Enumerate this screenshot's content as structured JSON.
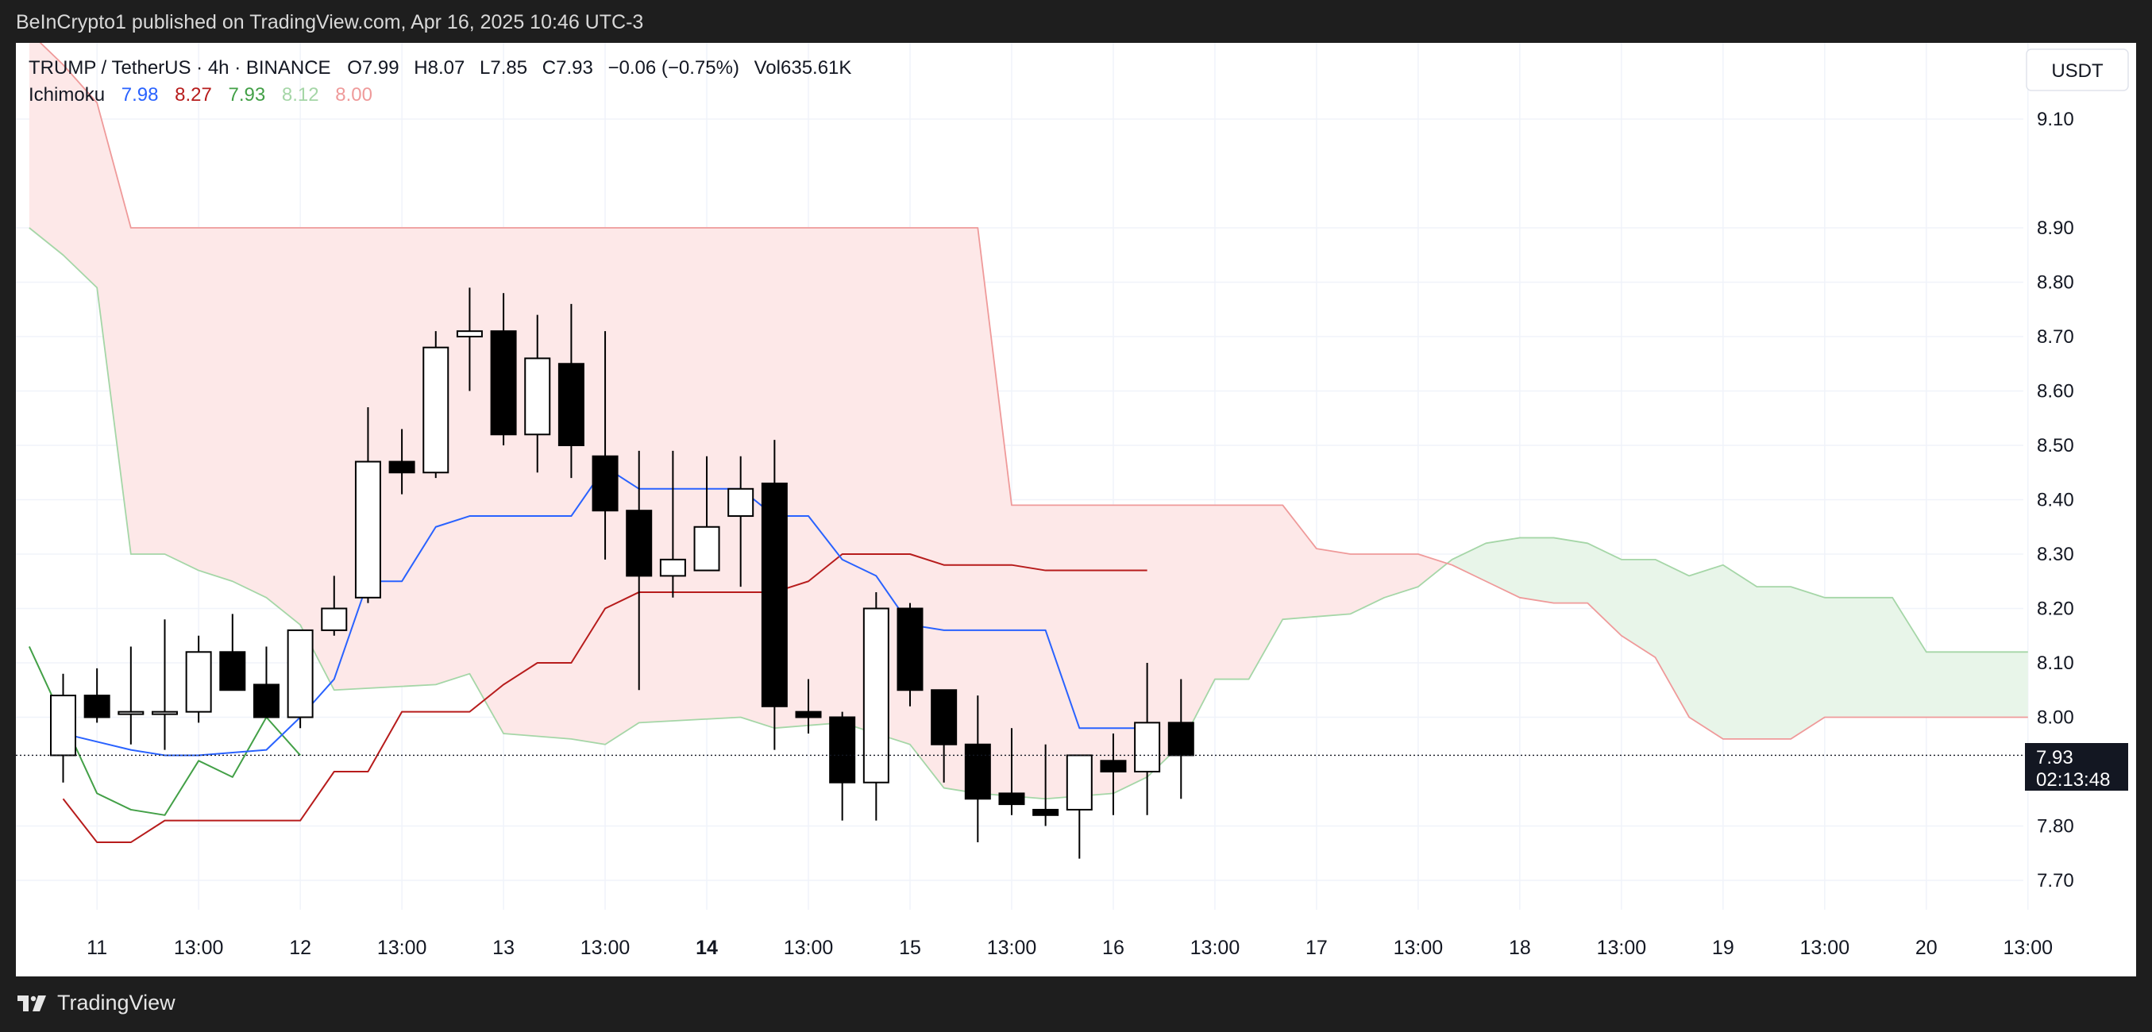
{
  "header": {
    "publisher": "BeInCrypto1 published on TradingView.com, Apr 16, 2025 10:46 UTC-3"
  },
  "legend": {
    "symbol": "TRUMP / TetherUS · 4h · BINANCE",
    "open_label": "O",
    "open": "7.99",
    "high_label": "H",
    "high": "8.07",
    "low_label": "L",
    "low": "7.85",
    "close_label": "C",
    "close": "7.93",
    "change": "−0.06 (−0.75%)",
    "vol_label": "Vol",
    "vol": "635.61K",
    "indicator": "Ichimoku",
    "ind_values": [
      "7.98",
      "8.27",
      "7.93",
      "8.12",
      "8.00"
    ]
  },
  "currency_button": "USDT",
  "price_tag": {
    "price": "7.93",
    "countdown": "02:13:48"
  },
  "footer": {
    "brand": "TradingView"
  },
  "colors": {
    "conversion": "#2962ff",
    "base": "#b71c1c",
    "lagging": "#43a047",
    "span_a": "#a5d6a7",
    "span_b": "#ef9a9a",
    "cloud_bear": "#fde8e8",
    "cloud_bull": "#e8f5e9",
    "legend_values": [
      "#2962ff",
      "#b71c1c",
      "#43a047",
      "#a5d6a7",
      "#ef9a9a"
    ]
  },
  "chart_data": {
    "type": "candlestick",
    "timeframe": "4h",
    "y_ticks": [
      7.7,
      7.8,
      8.0,
      8.1,
      8.2,
      8.3,
      8.4,
      8.5,
      8.6,
      8.7,
      8.8,
      8.9,
      9.1
    ],
    "y_tick_labels": [
      "7.70",
      "7.80",
      "8.00",
      "8.10",
      "8.20",
      "8.30",
      "8.40",
      "8.50",
      "8.60",
      "8.70",
      "8.80",
      "8.90",
      "9.10"
    ],
    "x_ticks": [
      {
        "i": 1,
        "label": "11",
        "bold": false
      },
      {
        "i": 4,
        "label": "13:00",
        "bold": false
      },
      {
        "i": 7,
        "label": "12",
        "bold": false
      },
      {
        "i": 10,
        "label": "13:00",
        "bold": false
      },
      {
        "i": 13,
        "label": "13",
        "bold": false
      },
      {
        "i": 16,
        "label": "13:00",
        "bold": false
      },
      {
        "i": 19,
        "label": "14",
        "bold": true
      },
      {
        "i": 22,
        "label": "13:00",
        "bold": false
      },
      {
        "i": 25,
        "label": "15",
        "bold": false
      },
      {
        "i": 28,
        "label": "13:00",
        "bold": false
      },
      {
        "i": 31,
        "label": "16",
        "bold": false
      },
      {
        "i": 34,
        "label": "13:00",
        "bold": false
      },
      {
        "i": 37,
        "label": "17",
        "bold": false
      },
      {
        "i": 40,
        "label": "13:00",
        "bold": false
      },
      {
        "i": 43,
        "label": "18",
        "bold": false
      },
      {
        "i": 46,
        "label": "13:00",
        "bold": false
      },
      {
        "i": 49,
        "label": "19",
        "bold": false
      },
      {
        "i": 52,
        "label": "13:00",
        "bold": false
      },
      {
        "i": 55,
        "label": "20",
        "bold": false
      },
      {
        "i": 58,
        "label": "13:00",
        "bold": false
      }
    ],
    "candles": [
      {
        "o": 7.93,
        "h": 8.08,
        "l": 7.88,
        "c": 8.04
      },
      {
        "o": 8.04,
        "h": 8.09,
        "l": 7.99,
        "c": 8.0
      },
      {
        "o": 8.01,
        "h": 8.13,
        "l": 7.95,
        "c": 8.01
      },
      {
        "o": 8.01,
        "h": 8.18,
        "l": 7.94,
        "c": 8.01
      },
      {
        "o": 8.01,
        "h": 8.15,
        "l": 7.99,
        "c": 8.12
      },
      {
        "o": 8.12,
        "h": 8.19,
        "l": 8.05,
        "c": 8.05
      },
      {
        "o": 8.06,
        "h": 8.13,
        "l": 8.0,
        "c": 8.0
      },
      {
        "o": 8.0,
        "h": 8.16,
        "l": 7.98,
        "c": 8.16
      },
      {
        "o": 8.16,
        "h": 8.26,
        "l": 8.15,
        "c": 8.2
      },
      {
        "o": 8.22,
        "h": 8.57,
        "l": 8.21,
        "c": 8.47
      },
      {
        "o": 8.47,
        "h": 8.53,
        "l": 8.41,
        "c": 8.45
      },
      {
        "o": 8.45,
        "h": 8.71,
        "l": 8.44,
        "c": 8.68
      },
      {
        "o": 8.7,
        "h": 8.79,
        "l": 8.6,
        "c": 8.71
      },
      {
        "o": 8.71,
        "h": 8.78,
        "l": 8.5,
        "c": 8.52
      },
      {
        "o": 8.52,
        "h": 8.74,
        "l": 8.45,
        "c": 8.66
      },
      {
        "o": 8.65,
        "h": 8.76,
        "l": 8.44,
        "c": 8.5
      },
      {
        "o": 8.48,
        "h": 8.71,
        "l": 8.29,
        "c": 8.38
      },
      {
        "o": 8.38,
        "h": 8.49,
        "l": 8.05,
        "c": 8.26
      },
      {
        "o": 8.26,
        "h": 8.49,
        "l": 8.22,
        "c": 8.29
      },
      {
        "o": 8.27,
        "h": 8.48,
        "l": 8.27,
        "c": 8.35
      },
      {
        "o": 8.37,
        "h": 8.48,
        "l": 8.24,
        "c": 8.42
      },
      {
        "o": 8.43,
        "h": 8.51,
        "l": 7.94,
        "c": 8.02
      },
      {
        "o": 8.01,
        "h": 8.07,
        "l": 7.97,
        "c": 8.0
      },
      {
        "o": 8.0,
        "h": 8.01,
        "l": 7.81,
        "c": 7.88
      },
      {
        "o": 7.88,
        "h": 8.23,
        "l": 7.81,
        "c": 8.2
      },
      {
        "o": 8.2,
        "h": 8.21,
        "l": 8.02,
        "c": 8.05
      },
      {
        "o": 8.05,
        "h": 8.05,
        "l": 7.88,
        "c": 7.95
      },
      {
        "o": 7.95,
        "h": 8.04,
        "l": 7.77,
        "c": 7.85
      },
      {
        "o": 7.86,
        "h": 7.98,
        "l": 7.82,
        "c": 7.84
      },
      {
        "o": 7.83,
        "h": 7.95,
        "l": 7.8,
        "c": 7.82
      },
      {
        "o": 7.83,
        "h": 7.93,
        "l": 7.74,
        "c": 7.93
      },
      {
        "o": 7.92,
        "h": 7.97,
        "l": 7.82,
        "c": 7.9
      },
      {
        "o": 7.9,
        "h": 8.1,
        "l": 7.82,
        "c": 7.99
      },
      {
        "o": 7.99,
        "h": 8.07,
        "l": 7.85,
        "c": 7.93
      }
    ],
    "ichimoku": {
      "conversion": [
        [
          0,
          7.97
        ],
        [
          2,
          7.94
        ],
        [
          3,
          7.93
        ],
        [
          4,
          7.93
        ],
        [
          6,
          7.94
        ],
        [
          7,
          8.0
        ],
        [
          8,
          8.07
        ],
        [
          9,
          8.25
        ],
        [
          10,
          8.25
        ],
        [
          11,
          8.35
        ],
        [
          12,
          8.37
        ],
        [
          15,
          8.37
        ],
        [
          16,
          8.46
        ],
        [
          17,
          8.42
        ],
        [
          20,
          8.42
        ],
        [
          21,
          8.37
        ],
        [
          22,
          8.37
        ],
        [
          23,
          8.29
        ],
        [
          24,
          8.26
        ],
        [
          25,
          8.17
        ],
        [
          26,
          8.16
        ],
        [
          29,
          8.16
        ],
        [
          30,
          7.98
        ],
        [
          32,
          7.98
        ]
      ],
      "base": [
        [
          0,
          7.85
        ],
        [
          1,
          7.77
        ],
        [
          2,
          7.77
        ],
        [
          3,
          7.81
        ],
        [
          7,
          7.81
        ],
        [
          8,
          7.9
        ],
        [
          9,
          7.9
        ],
        [
          10,
          8.01
        ],
        [
          12,
          8.01
        ],
        [
          13,
          8.06
        ],
        [
          14,
          8.1
        ],
        [
          15,
          8.1
        ],
        [
          16,
          8.2
        ],
        [
          17,
          8.23
        ],
        [
          20,
          8.23
        ],
        [
          21,
          8.23
        ],
        [
          22,
          8.25
        ],
        [
          23,
          8.3
        ],
        [
          25,
          8.3
        ],
        [
          26,
          8.28
        ],
        [
          28,
          8.28
        ],
        [
          29,
          8.27
        ],
        [
          32,
          8.27
        ]
      ],
      "lagging": [
        [
          -1,
          8.13
        ],
        [
          1,
          7.86
        ],
        [
          2,
          7.83
        ],
        [
          3,
          7.82
        ],
        [
          4,
          7.92
        ],
        [
          5,
          7.89
        ],
        [
          6,
          8.0
        ],
        [
          7,
          7.93
        ]
      ],
      "span_a": [
        [
          -1,
          8.9
        ],
        [
          0,
          8.85
        ],
        [
          1,
          8.79
        ],
        [
          2,
          8.3
        ],
        [
          3,
          8.3
        ],
        [
          4,
          8.27
        ],
        [
          5,
          8.25
        ],
        [
          6,
          8.22
        ],
        [
          7,
          8.17
        ],
        [
          8,
          8.05
        ],
        [
          11,
          8.06
        ],
        [
          12,
          8.08
        ],
        [
          13,
          7.97
        ],
        [
          15,
          7.96
        ],
        [
          16,
          7.95
        ],
        [
          17,
          7.99
        ],
        [
          20,
          8.0
        ],
        [
          21,
          7.98
        ],
        [
          23,
          7.99
        ],
        [
          24,
          7.97
        ],
        [
          25,
          7.95
        ],
        [
          26,
          7.87
        ],
        [
          27,
          7.86
        ],
        [
          29,
          7.85
        ],
        [
          31,
          7.86
        ],
        [
          32,
          7.89
        ],
        [
          33,
          7.95
        ],
        [
          34,
          8.07
        ],
        [
          35,
          8.07
        ],
        [
          36,
          8.18
        ],
        [
          38,
          8.19
        ],
        [
          39,
          8.22
        ],
        [
          40,
          8.24
        ],
        [
          41,
          8.29
        ],
        [
          42,
          8.32
        ],
        [
          43,
          8.33
        ],
        [
          44,
          8.33
        ],
        [
          45,
          8.32
        ],
        [
          46,
          8.29
        ],
        [
          47,
          8.29
        ],
        [
          48,
          8.26
        ],
        [
          49,
          8.28
        ],
        [
          50,
          8.24
        ],
        [
          51,
          8.24
        ],
        [
          52,
          8.22
        ],
        [
          54,
          8.22
        ],
        [
          55,
          8.12
        ],
        [
          58,
          8.12
        ]
      ],
      "span_b": [
        [
          -1,
          9.26
        ],
        [
          0,
          9.2
        ],
        [
          1,
          9.13
        ],
        [
          2,
          8.9
        ],
        [
          27,
          8.9
        ],
        [
          28,
          8.39
        ],
        [
          36,
          8.39
        ],
        [
          37,
          8.31
        ],
        [
          38,
          8.3
        ],
        [
          39,
          8.3
        ],
        [
          40,
          8.3
        ],
        [
          41,
          8.28
        ],
        [
          42,
          8.25
        ],
        [
          43,
          8.22
        ],
        [
          44,
          8.21
        ],
        [
          45,
          8.21
        ],
        [
          46,
          8.15
        ],
        [
          47,
          8.11
        ],
        [
          48,
          8.0
        ],
        [
          49,
          7.96
        ],
        [
          51,
          7.96
        ],
        [
          52,
          8.0
        ],
        [
          58,
          8.0
        ]
      ]
    }
  }
}
